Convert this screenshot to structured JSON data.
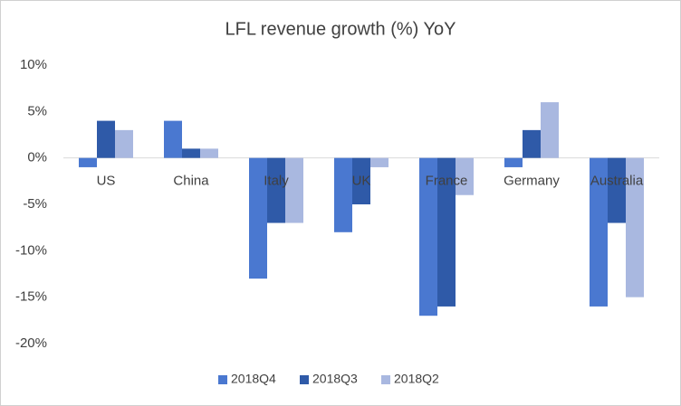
{
  "chart_data": {
    "type": "bar",
    "title": "LFL revenue growth (%) YoY",
    "categories": [
      "US",
      "China",
      "Italy",
      "UK",
      "France",
      "Germany",
      "Australia"
    ],
    "series": [
      {
        "name": "2018Q4",
        "color": "#4a78d0",
        "values": [
          -1,
          4,
          -13,
          -8,
          -17,
          -1,
          -16
        ]
      },
      {
        "name": "2018Q3",
        "color": "#2f5aa8",
        "values": [
          4,
          1,
          -7,
          -5,
          -16,
          3,
          -7
        ]
      },
      {
        "name": "2018Q2",
        "color": "#a9b8e0",
        "values": [
          3,
          1,
          -7,
          -1,
          -4,
          6,
          -15
        ]
      }
    ],
    "ylim": [
      -20,
      10
    ],
    "yticks": [
      {
        "value": -20,
        "label": "-20%"
      },
      {
        "value": -15,
        "label": "-15%"
      },
      {
        "value": -10,
        "label": "-10%"
      },
      {
        "value": -5,
        "label": "-5%"
      },
      {
        "value": 0,
        "label": "0%"
      },
      {
        "value": 5,
        "label": "5%"
      },
      {
        "value": 10,
        "label": "10%"
      }
    ],
    "grid": false,
    "legend": "bottom"
  }
}
